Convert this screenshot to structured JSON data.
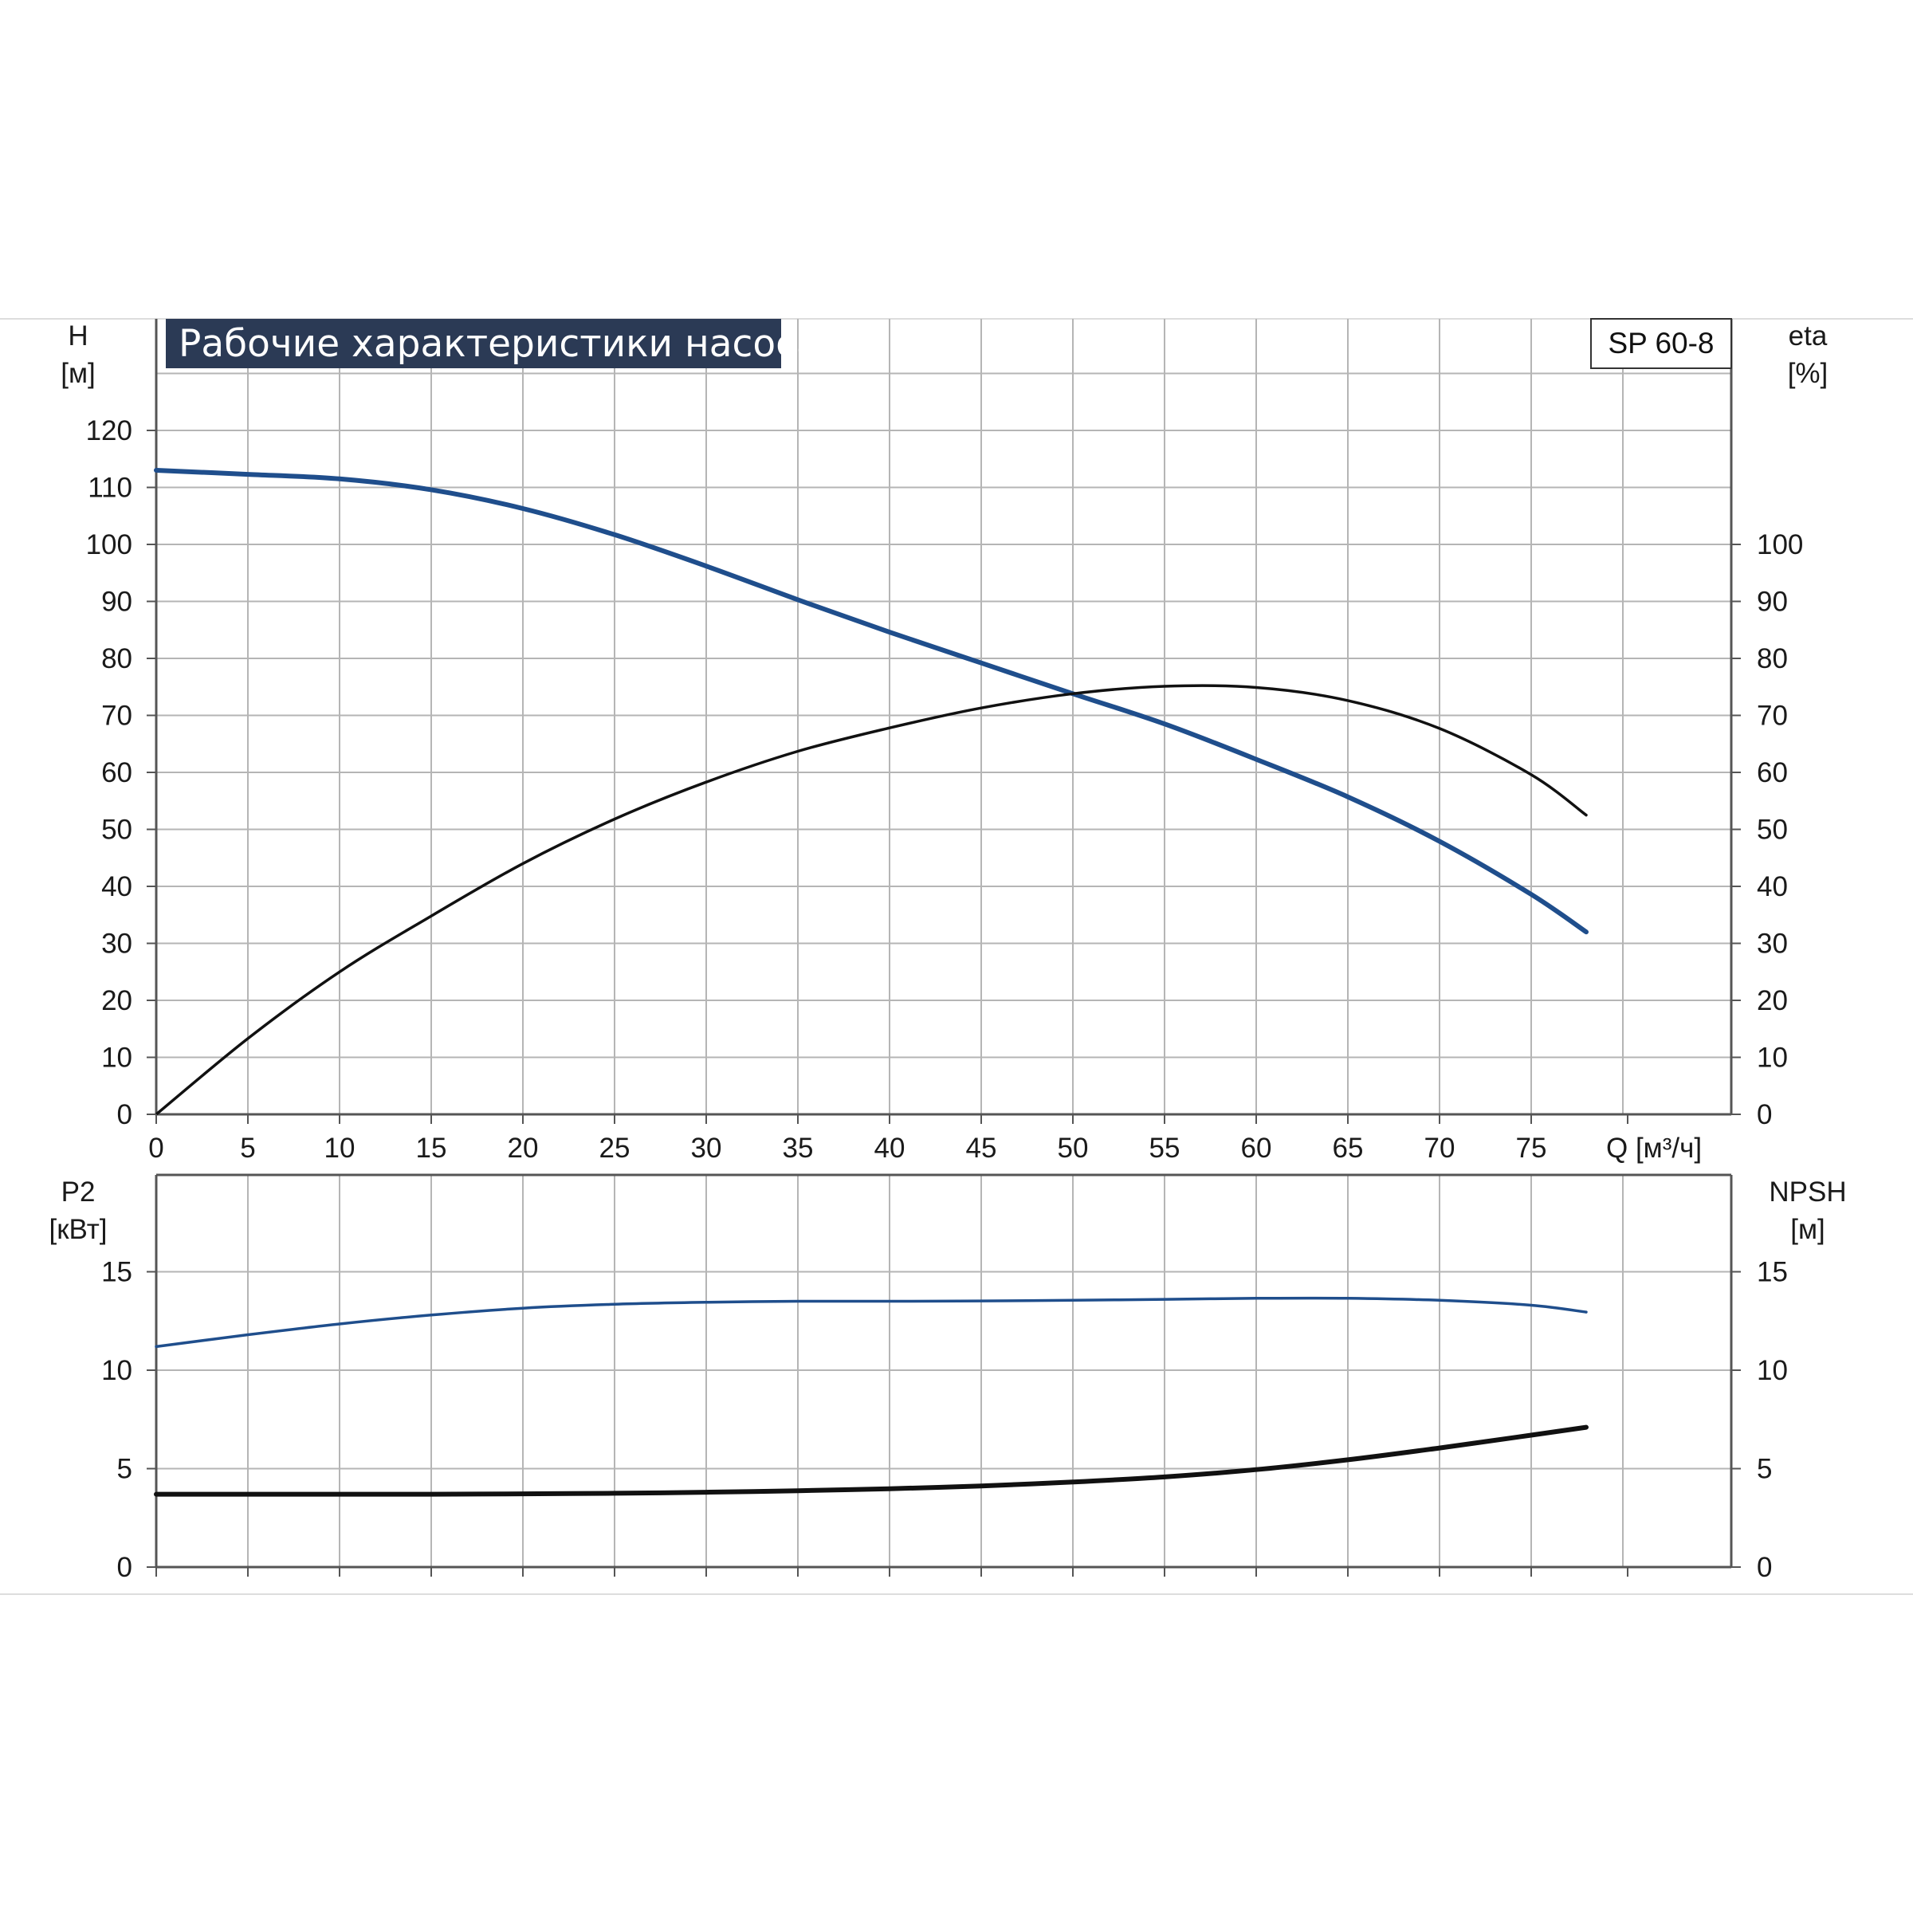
{
  "title": "Рабочие характеристики насоса",
  "model": "SP 60-8",
  "colors": {
    "blue_curve": "#1f4e8c",
    "black_curve": "#111111",
    "title_bg": "#2b3a55",
    "grid": "#b5b5b5",
    "frame": "#555555"
  },
  "chart_data": [
    {
      "type": "line",
      "panel": "top",
      "x_axis": {
        "label": "Q [м³/ч]",
        "ticks": [
          0,
          5,
          10,
          15,
          20,
          25,
          30,
          35,
          40,
          45,
          50,
          55,
          60,
          65,
          70,
          75
        ],
        "range": [
          0,
          85.7
        ]
      },
      "y_left": {
        "label_line1": "H",
        "label_line2": "[м]",
        "ticks": [
          0,
          10,
          20,
          30,
          40,
          50,
          60,
          70,
          80,
          90,
          100,
          110,
          120
        ],
        "range": [
          0,
          140
        ]
      },
      "y_right": {
        "label_line1": "eta",
        "label_line2": "[%]",
        "ticks": [
          0,
          10,
          20,
          30,
          40,
          50,
          60,
          70,
          80,
          90,
          100
        ],
        "range": [
          0,
          140
        ]
      },
      "grid": true,
      "series": [
        {
          "key": "H",
          "color": "#1f4e8c",
          "x": [
            0,
            5,
            10,
            15,
            20,
            25,
            30,
            35,
            40,
            45,
            50,
            55,
            60,
            65,
            70,
            75,
            78
          ],
          "y": [
            113,
            112.3,
            111.5,
            109.6,
            106.3,
            101.7,
            96.2,
            90.3,
            84.6,
            79.2,
            73.8,
            68.5,
            62.3,
            55.7,
            47.9,
            38.6,
            32
          ]
        },
        {
          "key": "eta",
          "color": "#111111",
          "x": [
            0,
            5,
            10,
            15,
            20,
            25,
            30,
            35,
            40,
            45,
            50,
            55,
            60,
            65,
            70,
            75,
            78
          ],
          "y": [
            0,
            13.3,
            25,
            34.8,
            44,
            51.8,
            58.3,
            63.7,
            67.8,
            71.3,
            73.8,
            75.1,
            74.9,
            72.6,
            67.7,
            59.6,
            52.5
          ]
        }
      ]
    },
    {
      "type": "line",
      "panel": "bottom",
      "x_axis": {
        "label": "",
        "ticks": [
          0,
          5,
          10,
          15,
          20,
          25,
          30,
          35,
          40,
          45,
          50,
          55,
          60,
          65,
          70,
          75
        ],
        "range": [
          0,
          85.7
        ]
      },
      "y_left": {
        "label_line1": "P2",
        "label_line2": "[кВт]",
        "ticks": [
          0,
          5,
          10,
          15
        ],
        "range": [
          0,
          20
        ]
      },
      "y_right": {
        "label_line1": "NPSH",
        "label_line2": "[м]",
        "ticks": [
          0,
          5,
          10,
          15
        ],
        "range": [
          0,
          20
        ]
      },
      "grid": true,
      "series": [
        {
          "key": "P2",
          "color": "#1f4e8c",
          "x": [
            0,
            5,
            10,
            15,
            20,
            25,
            30,
            35,
            40,
            45,
            50,
            55,
            60,
            65,
            70,
            75,
            78
          ],
          "y": [
            11.2,
            11.8,
            12.35,
            12.8,
            13.15,
            13.35,
            13.45,
            13.5,
            13.5,
            13.52,
            13.55,
            13.6,
            13.65,
            13.65,
            13.55,
            13.3,
            12.95
          ]
        },
        {
          "key": "NPSH",
          "color": "#111111",
          "x": [
            0,
            5,
            10,
            15,
            20,
            25,
            30,
            35,
            40,
            45,
            50,
            55,
            60,
            65,
            70,
            75,
            78
          ],
          "y": [
            3.7,
            3.7,
            3.7,
            3.7,
            3.72,
            3.75,
            3.8,
            3.88,
            3.98,
            4.12,
            4.32,
            4.58,
            4.95,
            5.45,
            6.05,
            6.7,
            7.1
          ]
        }
      ]
    }
  ]
}
